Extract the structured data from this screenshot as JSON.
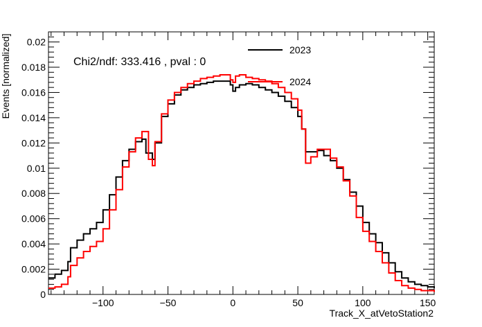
{
  "chart_data": {
    "type": "line",
    "title": "",
    "xlabel": "Track_X_atVetoStation2",
    "ylabel": "Events [normalized]",
    "xlim": [
      -142,
      155
    ],
    "ylim": [
      0,
      0.0208
    ],
    "x_ticks": [
      -100,
      -50,
      0,
      50,
      100,
      150
    ],
    "x_tick_labels": [
      "−100",
      "−50",
      "0",
      "50",
      "100",
      "150"
    ],
    "y_ticks": [
      0,
      0.002,
      0.004,
      0.006,
      0.008,
      0.01,
      0.012,
      0.014,
      0.016,
      0.018,
      0.02
    ],
    "y_tick_labels": [
      "0",
      "0.002",
      "0.004",
      "0.006",
      "0.008",
      "0.01",
      "0.012",
      "0.014",
      "0.016",
      "0.018",
      "0.02"
    ],
    "annotation": "Chi2/ndf: 333.416 , pval : 0",
    "legend_position": "top-right",
    "grid": false,
    "bin_edges_range": [
      -142,
      155
    ],
    "series": [
      {
        "name": "2023",
        "color": "#000000",
        "points": [
          [
            -142,
            0.0013
          ],
          [
            -137,
            0.0016
          ],
          [
            -132,
            0.0019
          ],
          [
            -127,
            0.0026
          ],
          [
            -125,
            0.0037
          ],
          [
            -120,
            0.0043
          ],
          [
            -115,
            0.0048
          ],
          [
            -110,
            0.0052
          ],
          [
            -105,
            0.0057
          ],
          [
            -100,
            0.0067
          ],
          [
            -95,
            0.0079
          ],
          [
            -90,
            0.0093
          ],
          [
            -85,
            0.0106
          ],
          [
            -80,
            0.0115
          ],
          [
            -75,
            0.0121
          ],
          [
            -70,
            0.0123
          ],
          [
            -67,
            0.0112
          ],
          [
            -62,
            0.0107
          ],
          [
            -60,
            0.012
          ],
          [
            -55,
            0.0141
          ],
          [
            -50,
            0.0151
          ],
          [
            -45,
            0.0158
          ],
          [
            -40,
            0.0162
          ],
          [
            -35,
            0.0164
          ],
          [
            -30,
            0.0166
          ],
          [
            -25,
            0.0167
          ],
          [
            -20,
            0.0168
          ],
          [
            -15,
            0.0169
          ],
          [
            -10,
            0.0169
          ],
          [
            -5,
            0.0169
          ],
          [
            -2,
            0.0166
          ],
          [
            0,
            0.0161
          ],
          [
            2,
            0.0164
          ],
          [
            5,
            0.0166
          ],
          [
            10,
            0.0167
          ],
          [
            15,
            0.0166
          ],
          [
            20,
            0.0164
          ],
          [
            25,
            0.0162
          ],
          [
            30,
            0.016
          ],
          [
            35,
            0.0157
          ],
          [
            40,
            0.0153
          ],
          [
            45,
            0.0148
          ],
          [
            50,
            0.0141
          ],
          [
            53,
            0.0131
          ],
          [
            56,
            0.0113
          ],
          [
            60,
            0.0113
          ],
          [
            65,
            0.0114
          ],
          [
            70,
            0.011
          ],
          [
            75,
            0.0106
          ],
          [
            80,
            0.01
          ],
          [
            85,
            0.0091
          ],
          [
            90,
            0.0081
          ],
          [
            95,
            0.007
          ],
          [
            100,
            0.0057
          ],
          [
            105,
            0.0048
          ],
          [
            110,
            0.0041
          ],
          [
            115,
            0.0033
          ],
          [
            120,
            0.0025
          ],
          [
            125,
            0.0018
          ],
          [
            130,
            0.0013
          ],
          [
            135,
            0.001
          ],
          [
            140,
            0.0008
          ],
          [
            145,
            0.0007
          ],
          [
            150,
            0.0006
          ],
          [
            155,
            0.0005
          ]
        ]
      },
      {
        "name": "2024",
        "color": "#ff0000",
        "points": [
          [
            -142,
            0.0005
          ],
          [
            -137,
            0.0006
          ],
          [
            -132,
            0.0008
          ],
          [
            -127,
            0.0014
          ],
          [
            -125,
            0.0023
          ],
          [
            -120,
            0.0029
          ],
          [
            -115,
            0.0034
          ],
          [
            -110,
            0.0038
          ],
          [
            -105,
            0.0042
          ],
          [
            -100,
            0.0052
          ],
          [
            -95,
            0.0067
          ],
          [
            -90,
            0.0083
          ],
          [
            -85,
            0.0101
          ],
          [
            -80,
            0.0113
          ],
          [
            -75,
            0.0124
          ],
          [
            -70,
            0.0129
          ],
          [
            -65,
            0.0107
          ],
          [
            -62,
            0.0102
          ],
          [
            -60,
            0.0121
          ],
          [
            -55,
            0.0143
          ],
          [
            -50,
            0.0154
          ],
          [
            -45,
            0.016
          ],
          [
            -40,
            0.0164
          ],
          [
            -35,
            0.0167
          ],
          [
            -30,
            0.0169
          ],
          [
            -25,
            0.0171
          ],
          [
            -20,
            0.0172
          ],
          [
            -15,
            0.0173
          ],
          [
            -10,
            0.0174
          ],
          [
            -5,
            0.0174
          ],
          [
            -2,
            0.017
          ],
          [
            0,
            0.0168
          ],
          [
            2,
            0.0173
          ],
          [
            5,
            0.0174
          ],
          [
            10,
            0.0172
          ],
          [
            15,
            0.0171
          ],
          [
            20,
            0.017
          ],
          [
            25,
            0.0169
          ],
          [
            30,
            0.0167
          ],
          [
            35,
            0.0164
          ],
          [
            40,
            0.016
          ],
          [
            45,
            0.0155
          ],
          [
            50,
            0.0146
          ],
          [
            53,
            0.0131
          ],
          [
            56,
            0.0104
          ],
          [
            60,
            0.0109
          ],
          [
            65,
            0.0115
          ],
          [
            70,
            0.0115
          ],
          [
            75,
            0.0108
          ],
          [
            80,
            0.0101
          ],
          [
            85,
            0.009
          ],
          [
            90,
            0.0078
          ],
          [
            95,
            0.0061
          ],
          [
            100,
            0.005
          ],
          [
            105,
            0.0042
          ],
          [
            110,
            0.0034
          ],
          [
            115,
            0.0025
          ],
          [
            120,
            0.0017
          ],
          [
            125,
            0.0011
          ],
          [
            130,
            0.0007
          ],
          [
            135,
            0.0005
          ],
          [
            140,
            0.0004
          ],
          [
            145,
            0.0003
          ],
          [
            150,
            0.0003
          ],
          [
            155,
            0.0002
          ]
        ]
      }
    ]
  }
}
